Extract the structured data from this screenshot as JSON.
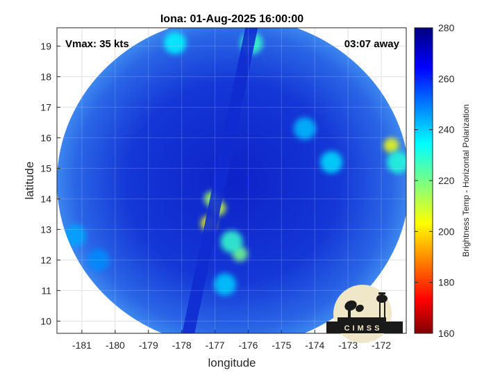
{
  "chart_data": {
    "type": "heatmap",
    "title": "Iona: 01-Aug-2025 16:00:00",
    "xlabel": "longitude",
    "ylabel": "latitude",
    "xlim": [
      -181.75,
      -171.25
    ],
    "ylim": [
      9.6,
      19.6
    ],
    "x_ticks": [
      -181,
      -180,
      -179,
      -178,
      -177,
      -176,
      -175,
      -174,
      -173,
      -172
    ],
    "y_ticks": [
      10,
      11,
      12,
      13,
      14,
      15,
      16,
      17,
      18,
      19
    ],
    "grid": true,
    "annotations": {
      "vmax": "Vmax: 35 kts",
      "time_away": "03:07 away"
    },
    "colorbar": {
      "label": "Brightness Temp - Horizontal Polarization",
      "range": [
        160,
        280
      ],
      "ticks": [
        160,
        180,
        200,
        220,
        240,
        260,
        280
      ],
      "colormap": "jet"
    },
    "swath": {
      "center_lon": -176.45,
      "center_lat": 14.55,
      "radius_deg": 5.3
    },
    "features": [
      {
        "lon": -177.2,
        "lat": 13.2,
        "value": 205
      },
      {
        "lon": -176.9,
        "lat": 13.7,
        "value": 210
      },
      {
        "lon": -177.1,
        "lat": 14.0,
        "value": 215
      },
      {
        "lon": -176.25,
        "lat": 12.2,
        "value": 220
      },
      {
        "lon": -176.5,
        "lat": 12.6,
        "value": 228
      },
      {
        "lon": -171.7,
        "lat": 15.75,
        "value": 205
      },
      {
        "lon": -171.5,
        "lat": 15.2,
        "value": 230
      },
      {
        "lon": -175.9,
        "lat": 19.1,
        "value": 228
      },
      {
        "lon": -178.2,
        "lat": 19.1,
        "value": 235
      },
      {
        "lon": -173.5,
        "lat": 15.2,
        "value": 238
      },
      {
        "lon": -174.3,
        "lat": 16.3,
        "value": 242
      },
      {
        "lon": -181.2,
        "lat": 12.8,
        "value": 245
      },
      {
        "lon": -180.5,
        "lat": 12.0,
        "value": 248
      },
      {
        "lon": -176.7,
        "lat": 11.2,
        "value": 240
      }
    ]
  },
  "logo": {
    "text": "CIMSS",
    "background_color": "#f0e6c8",
    "ink_color": "#1a1a1a"
  },
  "colors": {
    "background_blue": "#1a45e0",
    "deep_blue": "#0a18b8"
  }
}
